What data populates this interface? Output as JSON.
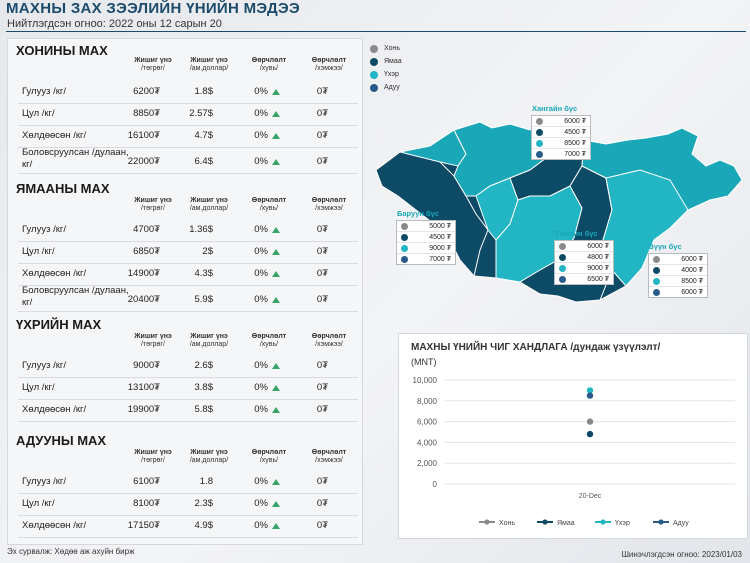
{
  "header": {
    "title": "МАХНЫ ЗАХ ЗЭЭЛИЙН ҮНИЙН МЭДЭЭ",
    "updated": "Нийтлэгдсэн огноо: 2022 оны 12 сарын 20"
  },
  "columns": [
    {
      "h": "Жишиг үнэ",
      "s": "/төгрөг/"
    },
    {
      "h": "Жишиг үнэ",
      "s": "/ам.доллар/"
    },
    {
      "h": "Өөрчлөлт",
      "s": "/хувь/"
    },
    {
      "h": "Өөрчлөлт",
      "s": "/хэмжээ/"
    }
  ],
  "sections": [
    {
      "title": "ХОНИНЫ МАХ",
      "rows": [
        {
          "label": "Гулууз /кг/",
          "mnt": "6200₮",
          "usd": "1.8$",
          "pct": "0%",
          "chg": "0₮"
        },
        {
          "label": "Цул  /кг/",
          "mnt": "8850₮",
          "usd": "2.57$",
          "pct": "0%",
          "chg": "0₮"
        },
        {
          "label": "Хөлдөөсөн /кг/",
          "mnt": "16100₮",
          "usd": "4.7$",
          "pct": "0%",
          "chg": "0₮"
        },
        {
          "label": "Боловсруулсан /дулаан, кг/",
          "mnt": "22000₮",
          "usd": "6.4$",
          "pct": "0%",
          "chg": "0₮"
        }
      ]
    },
    {
      "title": "ЯМААНЫ МАХ",
      "rows": [
        {
          "label": "Гулууз /кг/",
          "mnt": "4700₮",
          "usd": "1.36$",
          "pct": "0%",
          "chg": "0₮"
        },
        {
          "label": "Цул /кг/",
          "mnt": "6850₮",
          "usd": "2$",
          "pct": "0%",
          "chg": "0₮"
        },
        {
          "label": "Хөлдөөсөн /кг/",
          "mnt": "14900₮",
          "usd": "4.3$",
          "pct": "0%",
          "chg": "0₮"
        },
        {
          "label": "Боловсруулсан /дулаан, кг/",
          "mnt": "20400₮",
          "usd": "5.9$",
          "pct": "0%",
          "chg": "0₮"
        }
      ]
    },
    {
      "title": "ҮХРИЙН МАХ",
      "rows": [
        {
          "label": "Гулууз /кг/",
          "mnt": "9000₮",
          "usd": "2.6$",
          "pct": "0%",
          "chg": "0₮"
        },
        {
          "label": "Цул /кг/",
          "mnt": "13100₮",
          "usd": "3.8$",
          "pct": "0%",
          "chg": "0₮"
        },
        {
          "label": "Хөлдөөсөн /кг/",
          "mnt": "19900₮",
          "usd": "5.8$",
          "pct": "0%",
          "chg": "0₮"
        }
      ]
    },
    {
      "title": "АДУУНЫ МАХ",
      "rows": [
        {
          "label": "Гулууз /кг/",
          "mnt": "6100₮",
          "usd": "1.8",
          "pct": "0%",
          "chg": "0₮"
        },
        {
          "label": "Цул /кг/",
          "mnt": "8100₮",
          "usd": "2.3$",
          "pct": "0%",
          "chg": "0₮"
        },
        {
          "label": "Хөлдөөсөн /кг/",
          "mnt": "17150₮",
          "usd": "4.9$",
          "pct": "0%",
          "chg": "0₮"
        }
      ]
    }
  ],
  "legend": [
    {
      "name": "Хонь",
      "color": "#8a8a8a"
    },
    {
      "name": "Ямаа",
      "color": "#0d4a66"
    },
    {
      "name": "Үхэр",
      "color": "#22b5c4"
    },
    {
      "name": "Адуу",
      "color": "#2a5a8a"
    }
  ],
  "regions": [
    {
      "name": "Хангайн бүс",
      "prices": [
        "6000 ₮",
        "4500 ₮",
        "8500 ₮",
        "7000 ₮"
      ]
    },
    {
      "name": "Баруун бүс",
      "prices": [
        "5000 ₮",
        "4500 ₮",
        "9000 ₮",
        "7000 ₮"
      ]
    },
    {
      "name": "Төвийн бүс",
      "prices": [
        "6000 ₮",
        "4800 ₮",
        "9000 ₮",
        "6500 ₮"
      ]
    },
    {
      "name": "Зүүн бүс",
      "prices": [
        "6000 ₮",
        "4000 ₮",
        "8500 ₮",
        "6000 ₮"
      ]
    }
  ],
  "chart_data": {
    "type": "scatter",
    "title": "МАХНЫ ҮНИЙН ЧИГ ХАНДЛАГА /дундаж үзүүлэлт/",
    "ylabel": "(MNT)",
    "categories": [
      "20-Dec"
    ],
    "ylim": [
      0,
      10000
    ],
    "yticks": [
      "0",
      "2,000",
      "4,000",
      "6,000",
      "8,000",
      "10,000"
    ],
    "series": [
      {
        "name": "Хонь",
        "color": "#8a8a8a",
        "values": [
          6000
        ]
      },
      {
        "name": "Ямаа",
        "color": "#0d4a66",
        "values": [
          4800
        ]
      },
      {
        "name": "Үхэр",
        "color": "#22b5c4",
        "values": [
          9000
        ]
      },
      {
        "name": "Адуу",
        "color": "#2a5a8a",
        "values": [
          8500
        ]
      }
    ],
    "legend_position": "bottom"
  },
  "footer": {
    "source": "Эх сурвалж: Хөдөө аж ахуйн бирж",
    "checked": "Шинэчлэгдсэн огноо: 2023/01/03"
  }
}
